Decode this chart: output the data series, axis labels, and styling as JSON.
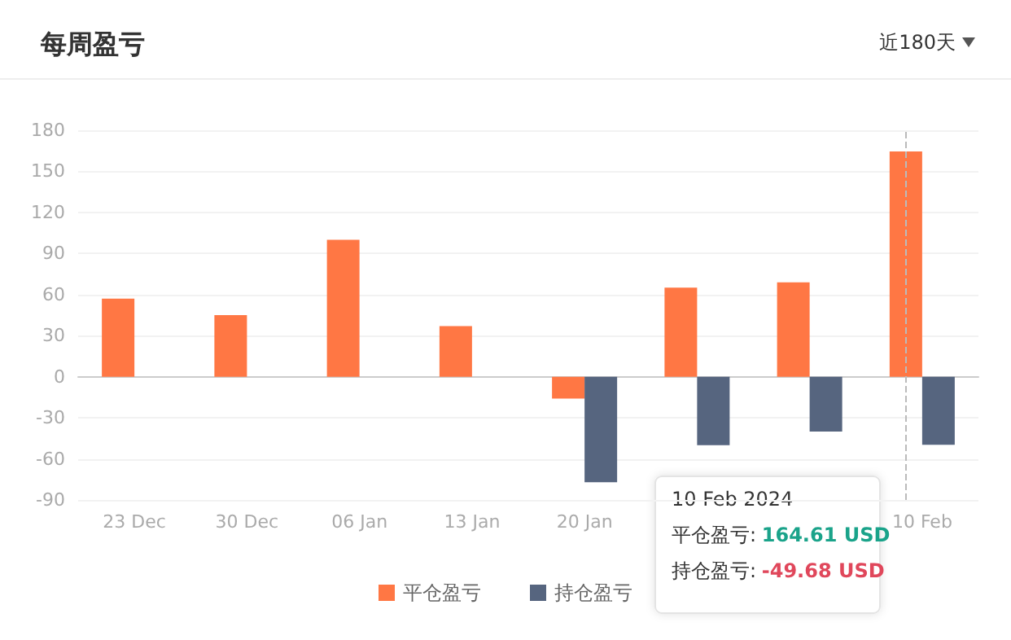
{
  "chart_data": {
    "type": "bar",
    "title": "每周盈亏",
    "categories": [
      "23 Dec",
      "30 Dec",
      "06 Jan",
      "13 Jan",
      "20 Jan",
      null,
      null,
      "10 Feb"
    ],
    "series": [
      {
        "name": "平仓盈亏",
        "color": "#ff7744",
        "values": [
          57,
          45,
          100,
          37,
          -16,
          65,
          69,
          164.61
        ]
      },
      {
        "name": "持仓盈亏",
        "color": "#56657f",
        "values": [
          null,
          null,
          null,
          null,
          -77,
          -50,
          -40,
          -49.68
        ]
      }
    ],
    "ylim": [
      -90,
      180
    ],
    "yticks": [
      -90,
      -60,
      -30,
      0,
      30,
      60,
      90,
      120,
      150,
      180
    ],
    "grid": "y",
    "legend": "bottom",
    "ref_lines": [
      {
        "axis": "x",
        "value": "10 Feb",
        "color": "#bbbbbb",
        "line_style": "dashed"
      }
    ],
    "annotations": [
      "近180天",
      "10 Feb 2024",
      "平仓盈亏: 164.61 USD",
      "持仓盈亏: -49.68 USD"
    ]
  }
}
